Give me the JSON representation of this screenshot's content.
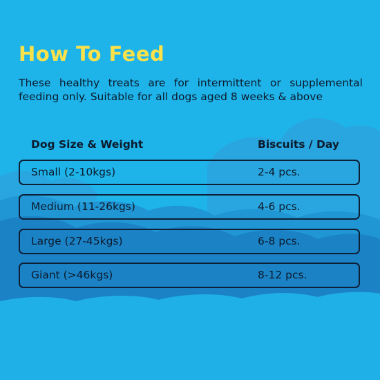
{
  "colors": {
    "background": "#1eb4ea",
    "cloud_light": "#2aa8e0",
    "cloud_mid": "#1f8fd0",
    "cloud_dark": "#1a7cc2",
    "title": "#fbe14a",
    "text": "#0c1a2c",
    "row_border": "#0d2035"
  },
  "decorations": {
    "background_icon": "cloud-shapes"
  },
  "title": "How To Feed",
  "intro": "These healthy treats are for intermittent or supplemental feeding only. Suitable for all dogs aged 8 weeks & above",
  "table": {
    "headers": {
      "size": "Dog Size & Weight",
      "quantity": "Biscuits / Day"
    },
    "rows": [
      {
        "size": "Small (2-10kgs)",
        "quantity": "2-4 pcs."
      },
      {
        "size": "Medium (11-26kgs)",
        "quantity": "4-6 pcs."
      },
      {
        "size": "Large (27-45kgs)",
        "quantity": "6-8 pcs."
      },
      {
        "size": "Giant (>46kgs)",
        "quantity": "8-12 pcs."
      }
    ]
  }
}
